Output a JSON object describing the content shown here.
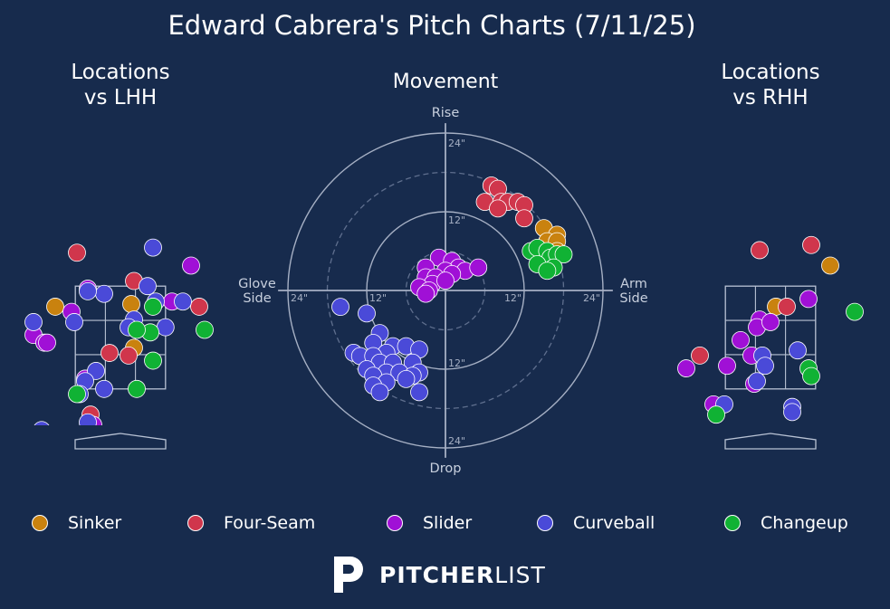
{
  "title": "Edward Cabrera's Pitch Charts (7/11/25)",
  "panels": {
    "lhh_title": "Locations\nvs LHH",
    "movement_title": "Movement",
    "rhh_title": "Locations\nvs RHH"
  },
  "movement_axes": {
    "top": "Rise",
    "bottom": "Drop",
    "left": "Glove\nSide",
    "right": "Arm\nSide",
    "ring_labels": {
      "up_12": "12\"",
      "up_24": "24\"",
      "down_12": "12\"",
      "down_24": "24\"",
      "left_12": "12\"",
      "left_24": "24\"",
      "right_12": "12\"",
      "right_24": "24\""
    }
  },
  "pitch_colors": {
    "Sinker": "#c9820f",
    "Four-Seam": "#d0364c",
    "Slider": "#a010d6",
    "Curveball": "#4a4ad8",
    "Changeup": "#10b234"
  },
  "legend": [
    {
      "label": "Sinker",
      "pitch": "Sinker"
    },
    {
      "label": "Four-Seam",
      "pitch": "Four-Seam"
    },
    {
      "label": "Slider",
      "pitch": "Slider"
    },
    {
      "label": "Curveball",
      "pitch": "Curveball"
    },
    {
      "label": "Changeup",
      "pitch": "Changeup"
    }
  ],
  "brand": {
    "bold": "PITCHER",
    "light": "LIST",
    "icon": "pitcherlist-p-logo-icon"
  },
  "chart_data": [
    {
      "type": "scatter",
      "title": "Locations vs LHH",
      "xlim": [
        -2.0,
        2.0
      ],
      "ylim": [
        -0.5,
        5.0
      ],
      "strike_zone": {
        "x": [
          -0.83,
          0.83
        ],
        "y": [
          1.5,
          3.5
        ]
      },
      "series": [
        {
          "name": "Sinker",
          "points": [
            [
              -1.2,
              3.1
            ],
            [
              0.2,
              3.15
            ],
            [
              0.25,
              2.3
            ]
          ]
        },
        {
          "name": "Four-Seam",
          "points": [
            [
              -0.8,
              4.15
            ],
            [
              0.25,
              3.6
            ],
            [
              -0.2,
              2.2
            ],
            [
              0.15,
              2.15
            ],
            [
              1.45,
              3.1
            ],
            [
              -0.55,
              1.0
            ]
          ]
        },
        {
          "name": "Slider",
          "points": [
            [
              -1.6,
              2.55
            ],
            [
              -1.4,
              2.4
            ],
            [
              -0.9,
              3.0
            ],
            [
              -0.6,
              3.45
            ],
            [
              1.3,
              3.9
            ],
            [
              0.95,
              3.2
            ],
            [
              -0.65,
              1.7
            ],
            [
              -0.5,
              0.8
            ],
            [
              -1.35,
              2.4
            ]
          ]
        },
        {
          "name": "Curveball",
          "points": [
            [
              0.6,
              4.25
            ],
            [
              -0.3,
              3.35
            ],
            [
              0.5,
              3.5
            ],
            [
              0.65,
              3.2
            ],
            [
              -0.6,
              3.4
            ],
            [
              -0.85,
              2.8
            ],
            [
              -1.6,
              2.8
            ],
            [
              0.25,
              2.85
            ],
            [
              0.15,
              2.7
            ],
            [
              0.83,
              2.7
            ],
            [
              1.15,
              3.2
            ],
            [
              -0.45,
              1.85
            ],
            [
              -0.3,
              1.5
            ],
            [
              -0.65,
              1.65
            ],
            [
              -0.75,
              1.4
            ],
            [
              -1.45,
              0.7
            ],
            [
              -0.6,
              0.85
            ]
          ]
        },
        {
          "name": "Changeup",
          "points": [
            [
              0.6,
              3.1
            ],
            [
              0.55,
              2.6
            ],
            [
              0.3,
              2.65
            ],
            [
              1.55,
              2.65
            ],
            [
              0.6,
              2.05
            ],
            [
              -0.8,
              1.4
            ],
            [
              0.3,
              1.5
            ],
            [
              -0.8,
              0.2
            ]
          ]
        }
      ]
    },
    {
      "type": "scatter",
      "title": "Movement",
      "xlabel": "Glove Side / Arm Side (inches)",
      "ylabel": "Drop / Rise (inches)",
      "xlim": [
        -24,
        24
      ],
      "ylim": [
        -24,
        24
      ],
      "rings": [
        12,
        24
      ],
      "dashed_rings": [
        6,
        18
      ],
      "series": [
        {
          "name": "Sinker",
          "points": [
            [
              15,
              9.5
            ],
            [
              17,
              8.5
            ],
            [
              15.5,
              7.5
            ],
            [
              17,
              7.5
            ],
            [
              17,
              6.0
            ],
            [
              16,
              5.2
            ],
            [
              15.5,
              4.0
            ]
          ]
        },
        {
          "name": "Four-Seam",
          "points": [
            [
              7,
              16
            ],
            [
              8,
              15.5
            ],
            [
              6,
              13.5
            ],
            [
              8.5,
              13.5
            ],
            [
              9.5,
              13.5
            ],
            [
              11,
              13.5
            ],
            [
              12,
              13
            ],
            [
              8,
              12.5
            ],
            [
              12,
              11
            ]
          ]
        },
        {
          "name": "Slider",
          "points": [
            [
              -1,
              5
            ],
            [
              1,
              4.5
            ],
            [
              -3,
              3.5
            ],
            [
              2,
              3.5
            ],
            [
              0,
              3
            ],
            [
              3,
              3
            ],
            [
              -3,
              2
            ],
            [
              -1.5,
              2
            ],
            [
              1,
              2.5
            ],
            [
              -2,
              1
            ],
            [
              0,
              1.5
            ],
            [
              -4,
              0.5
            ],
            [
              -2.5,
              0
            ],
            [
              -3,
              -0.5
            ],
            [
              5,
              3.5
            ]
          ]
        },
        {
          "name": "Curveball",
          "points": [
            [
              -16,
              -2.5
            ],
            [
              -12,
              -3.5
            ],
            [
              -10,
              -6.5
            ],
            [
              -11,
              -8
            ],
            [
              -8,
              -8.5
            ],
            [
              -14,
              -9.5
            ],
            [
              -13,
              -10
            ],
            [
              -9,
              -9.5
            ],
            [
              -11,
              -10
            ],
            [
              -6,
              -8.5
            ],
            [
              -4,
              -9
            ],
            [
              -10,
              -11
            ],
            [
              -8,
              -11
            ],
            [
              -12,
              -12
            ],
            [
              -9,
              -12.5
            ],
            [
              -5,
              -11
            ],
            [
              -7,
              -12.5
            ],
            [
              -4,
              -12.5
            ],
            [
              -11,
              -13
            ],
            [
              -5,
              -13
            ],
            [
              -6,
              -13.5
            ],
            [
              -9,
              -14
            ],
            [
              -11,
              -14.5
            ],
            [
              -10,
              -15.5
            ],
            [
              -4,
              -15.5
            ]
          ]
        },
        {
          "name": "Changeup",
          "points": [
            [
              13,
              6
            ],
            [
              14,
              6.5
            ],
            [
              15.5,
              6
            ],
            [
              16,
              5
            ],
            [
              17,
              5.5
            ],
            [
              18,
              5.5
            ],
            [
              14,
              4
            ],
            [
              16.5,
              3.5
            ],
            [
              15.5,
              3
            ]
          ]
        }
      ]
    },
    {
      "type": "scatter",
      "title": "Locations vs RHH",
      "xlim": [
        -2.0,
        2.0
      ],
      "ylim": [
        -0.5,
        5.0
      ],
      "strike_zone": {
        "x": [
          -0.83,
          0.83
        ],
        "y": [
          1.5,
          3.5
        ]
      },
      "series": [
        {
          "name": "Sinker",
          "points": [
            [
              1.1,
              3.9
            ],
            [
              0.1,
              3.1
            ]
          ]
        },
        {
          "name": "Four-Seam",
          "points": [
            [
              -0.2,
              4.2
            ],
            [
              0.75,
              4.3
            ],
            [
              0.3,
              3.1
            ],
            [
              -1.3,
              2.15
            ]
          ]
        },
        {
          "name": "Slider",
          "points": [
            [
              0.7,
              3.25
            ],
            [
              -0.2,
              2.85
            ],
            [
              -0.25,
              2.7
            ],
            [
              0.0,
              2.8
            ],
            [
              -0.55,
              2.45
            ],
            [
              -0.35,
              2.15
            ],
            [
              -0.8,
              1.95
            ],
            [
              -1.55,
              1.9
            ],
            [
              -1.05,
              1.2
            ],
            [
              -0.3,
              1.6
            ]
          ]
        },
        {
          "name": "Curveball",
          "points": [
            [
              0.5,
              2.25
            ],
            [
              -0.15,
              2.15
            ],
            [
              -0.1,
              1.95
            ],
            [
              -0.25,
              1.65
            ],
            [
              -0.85,
              1.2
            ],
            [
              0.4,
              1.15
            ],
            [
              0.4,
              1.05
            ]
          ]
        },
        {
          "name": "Changeup",
          "points": [
            [
              1.55,
              3.0
            ],
            [
              0.7,
              1.9
            ],
            [
              0.75,
              1.75
            ],
            [
              -1.0,
              1.0
            ]
          ]
        }
      ]
    }
  ]
}
